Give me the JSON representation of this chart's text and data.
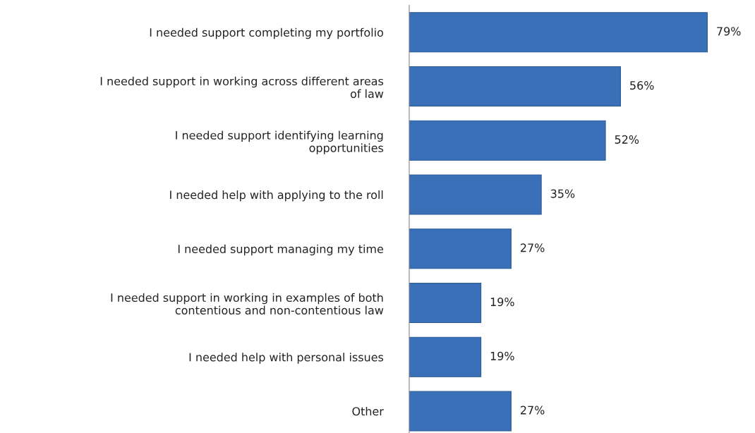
{
  "chart_data": {
    "type": "bar",
    "orientation": "horizontal",
    "categories": [
      "I needed support completing my portfolio",
      "I needed support in working across different areas\nof law",
      "I needed support identifying learning\nopportunities",
      "I needed help with applying to the roll",
      "I needed support managing my time",
      "I needed support in working in examples of both\ncontentious and non-contentious law",
      "I needed help with personal issues",
      "Other"
    ],
    "values": [
      79,
      56,
      52,
      35,
      27,
      19,
      19,
      27
    ],
    "value_labels": [
      "79%",
      "56%",
      "52%",
      "35%",
      "27%",
      "19%",
      "19%",
      "27%"
    ],
    "color": "#3a70b8",
    "grid": false,
    "legend": false
  }
}
